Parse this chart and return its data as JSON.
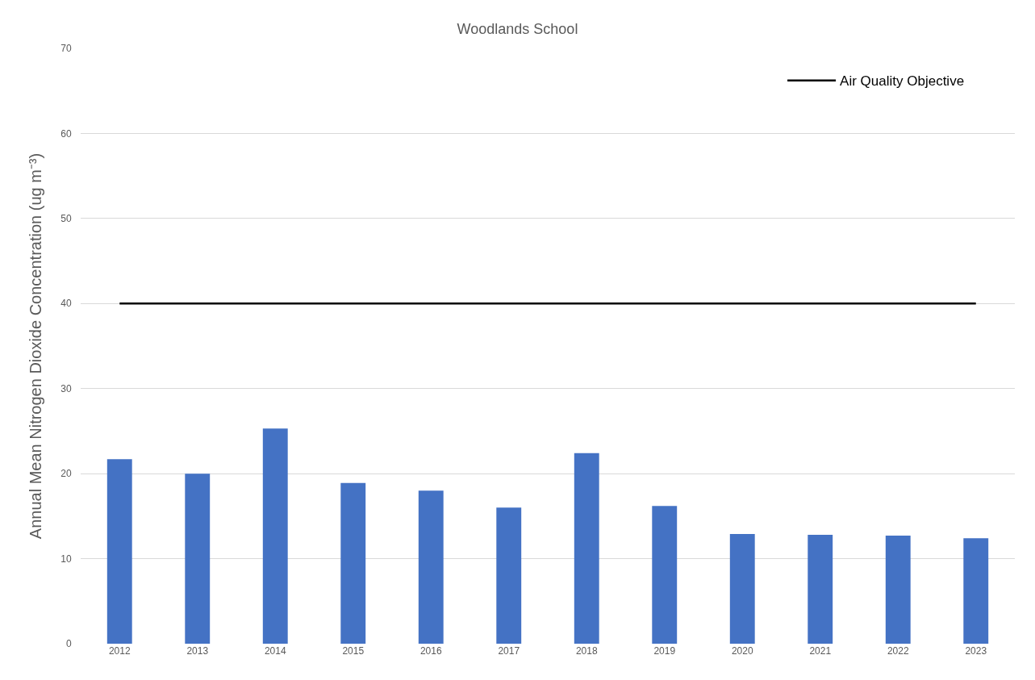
{
  "chart_data": {
    "type": "bar",
    "title": "Woodlands School",
    "ylabel": "Annual Mean Nitrogen Dioxide Concentration (ug m⁻³)",
    "categories": [
      "2012",
      "2013",
      "2014",
      "2015",
      "2016",
      "2017",
      "2018",
      "2019",
      "2020",
      "2021",
      "2022",
      "2023"
    ],
    "series": [
      {
        "color": "#4472c4",
        "values": [
          21.7,
          20.0,
          25.3,
          18.9,
          18.0,
          16.0,
          22.4,
          16.2,
          12.9,
          12.8,
          12.7,
          12.4
        ]
      },
      {
        "type": "line",
        "name": "Air Quality Objective",
        "color": "#000000",
        "values": [
          40,
          40,
          40,
          40,
          40,
          40,
          40,
          40,
          40,
          40,
          40,
          40
        ]
      }
    ],
    "ylim": [
      0,
      70
    ],
    "yticks": [
      0,
      10,
      20,
      30,
      40,
      50,
      60,
      70
    ],
    "grid": "y",
    "legend": "top right",
    "marker": "none",
    "line_style": "solid"
  }
}
